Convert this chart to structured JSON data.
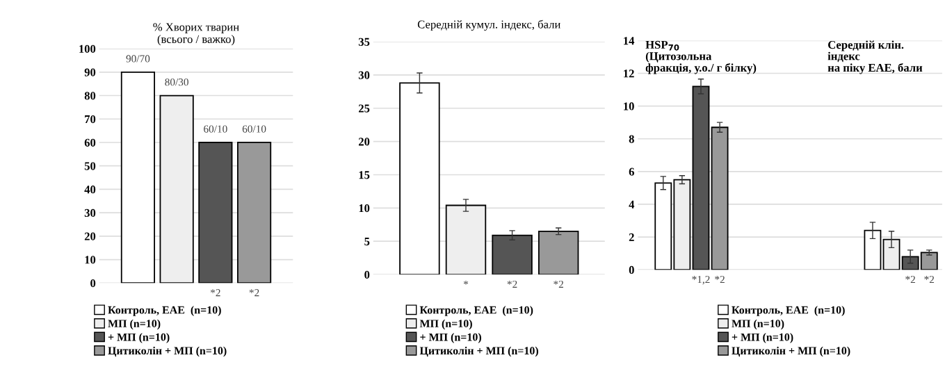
{
  "chart_data": [
    {
      "type": "bar",
      "title": "% Хворих тварин\n(всього / важко)",
      "categories": [
        null
      ],
      "ylim": [
        0,
        100
      ],
      "yticks": [
        0,
        10,
        20,
        30,
        40,
        50,
        60,
        70,
        80,
        90,
        100
      ],
      "grid": "y",
      "legend": "bottom",
      "series": [
        {
          "name": "Контроль, ЕАЕ  (n=10)",
          "color": "#ffffff",
          "values": [
            90
          ],
          "value_labels": [
            "90/70"
          ]
        },
        {
          "name": "МП (n=10)",
          "color": "#eeeeee",
          "values": [
            80
          ],
          "value_labels": [
            "80/30"
          ]
        },
        {
          "name": "+ МП (n=10)",
          "color": "#555555",
          "values": [
            60
          ],
          "value_labels": [
            "60/10"
          ]
        },
        {
          "name": "Цитиколін + МП (n=10)",
          "color": "#999999",
          "values": [
            60
          ],
          "value_labels": [
            "60/10"
          ]
        }
      ],
      "annotations": [
        "*2",
        "*2"
      ]
    },
    {
      "type": "bar",
      "title": "Середній кумул. індекс, бали",
      "categories": [
        null
      ],
      "ylim": [
        0,
        35
      ],
      "yticks": [
        0,
        5,
        10,
        15,
        20,
        25,
        30,
        35
      ],
      "grid": "y",
      "legend": "bottom",
      "series": [
        {
          "name": "Контроль, ЕАЕ  (n=10)",
          "color": "#ffffff",
          "values": [
            28.8
          ],
          "errors": [
            1.5
          ]
        },
        {
          "name": "МП (n=10)",
          "color": "#eeeeee",
          "values": [
            10.4
          ],
          "errors": [
            0.9
          ]
        },
        {
          "name": "+ МП (n=10)",
          "color": "#555555",
          "values": [
            5.9
          ],
          "errors": [
            0.7
          ]
        },
        {
          "name": "Цитиколін + МП (n=10)",
          "color": "#999999",
          "values": [
            6.5
          ],
          "errors": [
            0.5
          ]
        }
      ],
      "annotations": [
        "*",
        "*2",
        "*2"
      ]
    },
    {
      "type": "bar",
      "title": "HSP$_{70}$\n(Цитозольна\nфракція, у.о./ г білку)",
      "categories": [
        null,
        null
      ],
      "ylim": [
        0,
        14
      ],
      "yticks": [
        0,
        2,
        4,
        6,
        8,
        10,
        12,
        14
      ],
      "grid": "y",
      "legend": "bottom",
      "series": [
        {
          "name": "Контроль, ЕАЕ  (n=10)",
          "color": "#ffffff",
          "values": [
            5.3,
            2.4
          ],
          "errors": [
            0.4,
            0.5
          ]
        },
        {
          "name": "МП (n=10)",
          "color": "#eeeeee",
          "values": [
            5.5,
            1.85
          ],
          "errors": [
            0.25,
            0.5
          ]
        },
        {
          "name": "+ МП (n=10)",
          "color": "#555555",
          "values": [
            11.2,
            0.8
          ],
          "errors": [
            0.45,
            0.4
          ]
        },
        {
          "name": "Цитиколін + МП (n=10)",
          "color": "#999999",
          "values": [
            8.7,
            1.05
          ],
          "errors": [
            0.3,
            0.15
          ]
        }
      ],
      "annotations": [
        "Середній клін.\nіндекс\nна піку ЕАЕ, бали",
        "*1,2",
        "*2",
        "*2",
        "*2"
      ]
    }
  ]
}
